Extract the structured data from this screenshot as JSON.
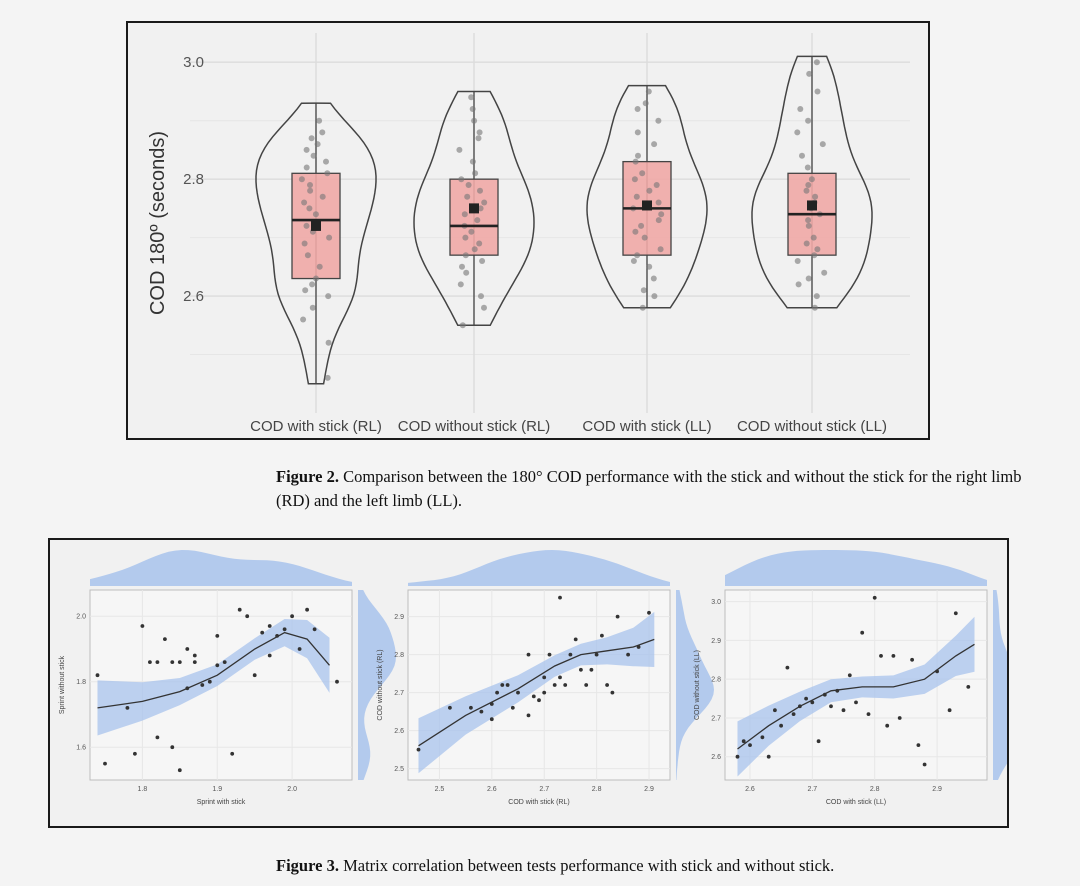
{
  "figure2": {
    "caption_label": "Figure 2.",
    "caption_text": " Comparison between the 180° COD performance with the stick and without the stick for the right limb (RD) and the left limb (LL).",
    "chart_data": {
      "type": "violin-box",
      "ylabel": "COD 180º (seconds)",
      "ylim": [
        2.4,
        3.05
      ],
      "yticks": [
        "2.6",
        "2.8",
        "3.0"
      ],
      "categories": [
        "COD with stick (RL)",
        "COD without stick (RL)",
        "COD with stick (LL)",
        "COD without stick (LL)"
      ],
      "box_color": "#f0a8a6",
      "groups": [
        {
          "name": "COD with stick (RL)",
          "min": 2.45,
          "q1": 2.63,
          "median": 2.73,
          "q3": 2.81,
          "max": 2.93,
          "mean": 2.72,
          "points": [
            2.46,
            2.52,
            2.56,
            2.58,
            2.6,
            2.61,
            2.62,
            2.63,
            2.65,
            2.67,
            2.69,
            2.7,
            2.71,
            2.72,
            2.74,
            2.75,
            2.76,
            2.77,
            2.78,
            2.79,
            2.8,
            2.81,
            2.82,
            2.83,
            2.84,
            2.85,
            2.86,
            2.87,
            2.88,
            2.9
          ]
        },
        {
          "name": "COD without stick (RL)",
          "min": 2.55,
          "q1": 2.67,
          "median": 2.72,
          "q3": 2.8,
          "max": 2.95,
          "mean": 2.75,
          "points": [
            2.55,
            2.58,
            2.6,
            2.62,
            2.64,
            2.65,
            2.66,
            2.67,
            2.68,
            2.69,
            2.7,
            2.71,
            2.72,
            2.73,
            2.74,
            2.75,
            2.76,
            2.77,
            2.78,
            2.79,
            2.8,
            2.81,
            2.83,
            2.85,
            2.87,
            2.88,
            2.9,
            2.92,
            2.94
          ]
        },
        {
          "name": "COD with stick (LL)",
          "min": 2.58,
          "q1": 2.67,
          "median": 2.75,
          "q3": 2.83,
          "max": 2.96,
          "mean": 2.755,
          "points": [
            2.58,
            2.6,
            2.61,
            2.63,
            2.65,
            2.66,
            2.67,
            2.68,
            2.7,
            2.71,
            2.72,
            2.73,
            2.74,
            2.75,
            2.76,
            2.77,
            2.78,
            2.79,
            2.8,
            2.81,
            2.83,
            2.84,
            2.86,
            2.88,
            2.9,
            2.92,
            2.93,
            2.95
          ]
        },
        {
          "name": "COD without stick (LL)",
          "min": 2.58,
          "q1": 2.67,
          "median": 2.74,
          "q3": 2.81,
          "max": 3.01,
          "mean": 2.755,
          "points": [
            2.58,
            2.6,
            2.62,
            2.63,
            2.64,
            2.66,
            2.67,
            2.68,
            2.69,
            2.7,
            2.72,
            2.73,
            2.74,
            2.75,
            2.76,
            2.77,
            2.78,
            2.79,
            2.8,
            2.82,
            2.84,
            2.86,
            2.88,
            2.9,
            2.92,
            2.95,
            2.98,
            3.0
          ]
        }
      ]
    }
  },
  "figure3": {
    "caption_label": "Figure 3.",
    "caption_text": " Matrix correlation between tests performance with stick and without stick.",
    "chart_data": [
      {
        "type": "scatter",
        "xlabel": "Sprint with stick",
        "ylabel": "Sprint without stick",
        "xlim": [
          1.73,
          2.08
        ],
        "ylim": [
          1.5,
          2.08
        ],
        "xticks": [
          1.8,
          1.9,
          2.0
        ],
        "xtick_labels": [
          "1.8",
          "1.9",
          "2.0"
        ],
        "yticks": [
          1.6,
          1.8,
          2.0
        ],
        "ytick_labels": [
          "1.6",
          "1.8",
          "2.0"
        ],
        "x": [
          1.74,
          1.75,
          1.78,
          1.79,
          1.8,
          1.81,
          1.82,
          1.82,
          1.83,
          1.84,
          1.84,
          1.85,
          1.85,
          1.86,
          1.86,
          1.87,
          1.87,
          1.88,
          1.89,
          1.9,
          1.9,
          1.91,
          1.92,
          1.93,
          1.94,
          1.95,
          1.96,
          1.97,
          1.97,
          1.98,
          1.99,
          2.0,
          2.01,
          2.02,
          2.03,
          2.06
        ],
        "y": [
          1.82,
          1.55,
          1.72,
          1.58,
          1.97,
          1.86,
          1.86,
          1.63,
          1.93,
          1.86,
          1.6,
          1.53,
          1.86,
          1.9,
          1.78,
          1.88,
          1.86,
          1.79,
          1.8,
          1.94,
          1.85,
          1.86,
          1.58,
          2.02,
          2.0,
          1.82,
          1.95,
          1.97,
          1.88,
          1.94,
          1.96,
          2.0,
          1.9,
          2.02,
          1.96,
          1.8
        ],
        "smooth": [
          [
            1.74,
            1.72
          ],
          [
            1.8,
            1.74
          ],
          [
            1.85,
            1.77
          ],
          [
            1.9,
            1.82
          ],
          [
            1.95,
            1.9
          ],
          [
            1.99,
            1.95
          ],
          [
            2.02,
            1.93
          ],
          [
            2.05,
            1.85
          ]
        ]
      },
      {
        "type": "scatter",
        "xlabel": "COD with stick (RL)",
        "ylabel": "COD without stick (RL)",
        "xlim": [
          2.44,
          2.94
        ],
        "ylim": [
          2.47,
          2.97
        ],
        "xticks": [
          2.5,
          2.6,
          2.7,
          2.8,
          2.9
        ],
        "xtick_labels": [
          "2.5",
          "2.6",
          "2.7",
          "2.8",
          "2.9"
        ],
        "yticks": [
          2.5,
          2.6,
          2.7,
          2.8,
          2.9
        ],
        "ytick_labels": [
          "2.5",
          "2.6",
          "2.7",
          "2.8",
          "2.9"
        ],
        "x": [
          2.46,
          2.52,
          2.56,
          2.58,
          2.6,
          2.6,
          2.61,
          2.62,
          2.63,
          2.64,
          2.65,
          2.67,
          2.67,
          2.68,
          2.69,
          2.7,
          2.7,
          2.71,
          2.72,
          2.73,
          2.73,
          2.74,
          2.75,
          2.76,
          2.77,
          2.78,
          2.79,
          2.8,
          2.81,
          2.82,
          2.83,
          2.84,
          2.86,
          2.88,
          2.9
        ],
        "y": [
          2.55,
          2.66,
          2.66,
          2.65,
          2.63,
          2.67,
          2.7,
          2.72,
          2.72,
          2.66,
          2.7,
          2.8,
          2.64,
          2.69,
          2.68,
          2.7,
          2.74,
          2.8,
          2.72,
          2.74,
          2.95,
          2.72,
          2.8,
          2.84,
          2.76,
          2.72,
          2.76,
          2.8,
          2.85,
          2.72,
          2.7,
          2.9,
          2.8,
          2.82,
          2.91
        ],
        "smooth": [
          [
            2.46,
            2.56
          ],
          [
            2.55,
            2.64
          ],
          [
            2.65,
            2.71
          ],
          [
            2.72,
            2.77
          ],
          [
            2.77,
            2.8
          ],
          [
            2.82,
            2.81
          ],
          [
            2.87,
            2.82
          ],
          [
            2.91,
            2.84
          ]
        ]
      },
      {
        "type": "scatter",
        "xlabel": "COD with stick (LL)",
        "ylabel": "COD without stick (LL)",
        "xlim": [
          2.56,
          2.98
        ],
        "ylim": [
          2.54,
          3.03
        ],
        "xticks": [
          2.6,
          2.7,
          2.8,
          2.9
        ],
        "xtick_labels": [
          "2.6",
          "2.7",
          "2.8",
          "2.9"
        ],
        "yticks": [
          2.6,
          2.7,
          2.8,
          2.9,
          3.0
        ],
        "ytick_labels": [
          "2.6",
          "2.7",
          "2.8",
          "2.9",
          "3.0"
        ],
        "x": [
          2.58,
          2.59,
          2.6,
          2.62,
          2.63,
          2.64,
          2.65,
          2.66,
          2.67,
          2.68,
          2.69,
          2.7,
          2.71,
          2.72,
          2.73,
          2.74,
          2.75,
          2.76,
          2.77,
          2.78,
          2.79,
          2.8,
          2.81,
          2.82,
          2.83,
          2.84,
          2.86,
          2.87,
          2.88,
          2.9,
          2.92,
          2.93,
          2.95
        ],
        "y": [
          2.6,
          2.64,
          2.63,
          2.65,
          2.6,
          2.72,
          2.68,
          2.83,
          2.71,
          2.73,
          2.75,
          2.74,
          2.64,
          2.76,
          2.73,
          2.77,
          2.72,
          2.81,
          2.74,
          2.92,
          2.71,
          3.01,
          2.86,
          2.68,
          2.86,
          2.7,
          2.85,
          2.63,
          2.58,
          2.82,
          2.72,
          2.97,
          2.78
        ],
        "smooth": [
          [
            2.58,
            2.62
          ],
          [
            2.63,
            2.68
          ],
          [
            2.68,
            2.73
          ],
          [
            2.73,
            2.77
          ],
          [
            2.78,
            2.78
          ],
          [
            2.83,
            2.78
          ],
          [
            2.88,
            2.8
          ],
          [
            2.93,
            2.86
          ],
          [
            2.96,
            2.89
          ]
        ]
      }
    ]
  }
}
